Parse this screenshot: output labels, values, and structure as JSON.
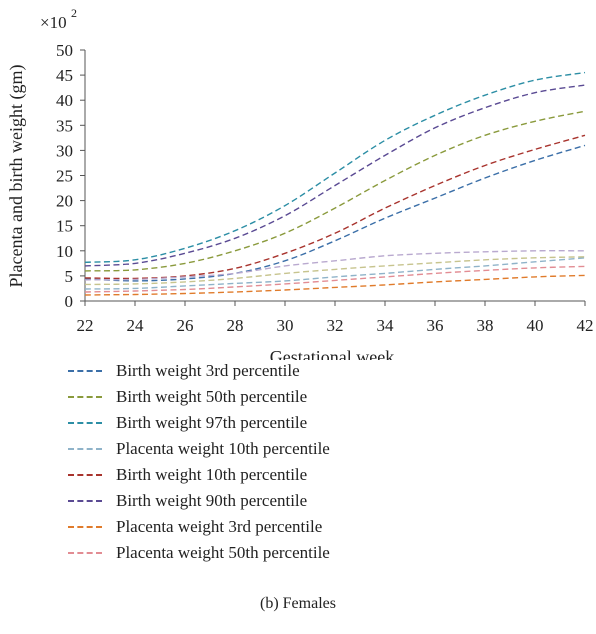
{
  "chart_data": {
    "type": "line",
    "xlabel": "Gestational week",
    "ylabel": "Placenta and birth weight (gm)",
    "y_multiplier": "×10^2",
    "xlim": [
      22,
      42
    ],
    "ylim": [
      0,
      50
    ],
    "x_ticks": [
      22,
      24,
      26,
      28,
      30,
      32,
      34,
      36,
      38,
      40,
      42
    ],
    "y_ticks": [
      0,
      5,
      10,
      15,
      20,
      25,
      30,
      35,
      40,
      45,
      50
    ],
    "grid": false,
    "legend_placement": "bottom",
    "x": [
      22,
      24,
      26,
      28,
      30,
      32,
      34,
      36,
      38,
      40,
      42
    ],
    "series": [
      {
        "name": "Birth weight 3rd percentile",
        "color": "#3b6fa8",
        "values": [
          4.4,
          4.0,
          4.4,
          5.5,
          8.0,
          12.0,
          16.5,
          20.5,
          24.5,
          28.0,
          31.0
        ]
      },
      {
        "name": "Birth weight 50th percentile",
        "color": "#8a9a3c",
        "values": [
          6.0,
          6.2,
          7.5,
          10.0,
          13.5,
          18.5,
          24.0,
          29.0,
          33.0,
          35.8,
          37.8
        ]
      },
      {
        "name": "Birth weight 97th percentile",
        "color": "#2c8ea5",
        "values": [
          7.7,
          8.2,
          10.5,
          14.0,
          19.0,
          25.5,
          32.0,
          37.0,
          41.0,
          44.0,
          45.5
        ]
      },
      {
        "name": "Placenta weight 10th percentile",
        "color": "#8fb3c9",
        "values": [
          2.4,
          2.5,
          3.0,
          3.5,
          4.0,
          4.8,
          5.5,
          6.3,
          7.0,
          7.8,
          8.6
        ]
      },
      {
        "name": "Birth weight 10th percentile",
        "color": "#a8332d",
        "values": [
          4.6,
          4.5,
          5.0,
          6.5,
          9.5,
          13.5,
          18.5,
          23.0,
          27.0,
          30.2,
          33.0
        ]
      },
      {
        "name": "Birth weight 90th percentile",
        "color": "#5a4a93",
        "values": [
          7.0,
          7.5,
          9.5,
          12.5,
          17.0,
          23.0,
          29.0,
          34.5,
          38.5,
          41.5,
          43.0
        ]
      },
      {
        "name": "Placenta weight 3rd percentile",
        "color": "#e07b2b",
        "values": [
          1.2,
          1.3,
          1.5,
          1.8,
          2.2,
          2.7,
          3.2,
          3.8,
          4.3,
          4.8,
          5.1
        ]
      },
      {
        "name": "Placenta weight 50th percentile",
        "color": "#e28c93",
        "values": [
          1.8,
          2.0,
          2.3,
          2.8,
          3.4,
          4.1,
          4.8,
          5.5,
          6.1,
          6.6,
          6.9
        ]
      }
    ],
    "extra_series": [
      {
        "name": "",
        "color": "#b9a9cf",
        "values": [
          4.2,
          4.3,
          4.8,
          5.5,
          7.0,
          8.0,
          9.0,
          9.5,
          9.8,
          10.0,
          10.0
        ]
      },
      {
        "name": "",
        "color": "#c7c48e",
        "values": [
          3.3,
          3.4,
          3.8,
          4.5,
          5.5,
          6.3,
          7.0,
          7.6,
          8.2,
          8.6,
          8.8
        ]
      }
    ]
  },
  "caption": "(b)  Females"
}
